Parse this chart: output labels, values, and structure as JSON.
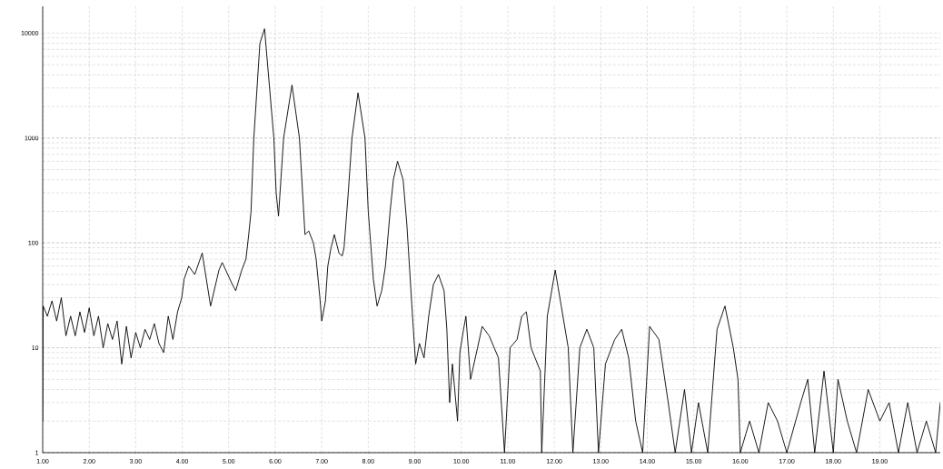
{
  "chart_data": {
    "type": "line",
    "log": "y",
    "grid": true,
    "xlim": [
      1,
      20.3
    ],
    "ylim": [
      1,
      18000
    ],
    "xticks": [
      {
        "value": 1,
        "label": "1.00"
      },
      {
        "value": 2,
        "label": "2.00"
      },
      {
        "value": 3,
        "label": "3.00"
      },
      {
        "value": 4,
        "label": "4.00"
      },
      {
        "value": 5,
        "label": "5.00"
      },
      {
        "value": 6,
        "label": "6.00"
      },
      {
        "value": 7,
        "label": "7.00"
      },
      {
        "value": 8,
        "label": "8.00"
      },
      {
        "value": 9,
        "label": "9.00"
      },
      {
        "value": 10,
        "label": "10.00"
      },
      {
        "value": 11,
        "label": "11.00"
      },
      {
        "value": 12,
        "label": "12.00"
      },
      {
        "value": 13,
        "label": "13.00"
      },
      {
        "value": 14,
        "label": "14.00"
      },
      {
        "value": 15,
        "label": "15.00"
      },
      {
        "value": 16,
        "label": "16.00"
      },
      {
        "value": 17,
        "label": "17.00"
      },
      {
        "value": 18,
        "label": "18.00"
      },
      {
        "value": 19,
        "label": "19.00"
      }
    ],
    "yticks": [
      1,
      10,
      100,
      1000,
      10000
    ],
    "series": [
      {
        "color": "#000000",
        "x": [
          1.0,
          1.01,
          1.1,
          1.2,
          1.3,
          1.4,
          1.5,
          1.6,
          1.7,
          1.8,
          1.9,
          2.0,
          2.1,
          2.2,
          2.3,
          2.4,
          2.5,
          2.6,
          2.7,
          2.8,
          2.9,
          3.0,
          3.1,
          3.2,
          3.3,
          3.4,
          3.5,
          3.6,
          3.7,
          3.8,
          3.9,
          3.99,
          4.04,
          4.14,
          4.27,
          4.43,
          4.61,
          4.79,
          4.86,
          5.08,
          5.15,
          5.28,
          5.37,
          5.43,
          5.48,
          5.54,
          5.67,
          5.77,
          5.97,
          6.02,
          6.07,
          6.18,
          6.36,
          6.52,
          6.64,
          6.72,
          6.82,
          6.88,
          6.96,
          7.0,
          7.08,
          7.13,
          7.2,
          7.27,
          7.37,
          7.44,
          7.48,
          7.57,
          7.65,
          7.78,
          7.93,
          8.0,
          8.11,
          8.19,
          8.29,
          8.37,
          8.47,
          8.54,
          8.63,
          8.75,
          8.83,
          8.91,
          8.97,
          9.02,
          9.1,
          9.2,
          9.3,
          9.4,
          9.51,
          9.63,
          9.69,
          9.75,
          9.81,
          9.92,
          9.97,
          10.05,
          10.1,
          10.2,
          10.35,
          10.45,
          10.6,
          10.8,
          10.93,
          11.05,
          11.2,
          11.3,
          11.4,
          11.5,
          11.7,
          11.73,
          11.85,
          12.02,
          12.15,
          12.3,
          12.4,
          12.55,
          12.7,
          12.85,
          12.95,
          13.1,
          13.3,
          13.45,
          13.6,
          13.75,
          13.9,
          14.05,
          14.25,
          14.45,
          14.6,
          14.8,
          14.95,
          15.1,
          15.3,
          15.5,
          15.67,
          15.85,
          15.95,
          16.0,
          16.2,
          16.4,
          16.6,
          16.8,
          17.0,
          17.3,
          17.45,
          17.6,
          17.8,
          18.0,
          18.1,
          18.3,
          18.5,
          18.75,
          19.0,
          19.2,
          19.4,
          19.6,
          19.8,
          20.0,
          20.2,
          20.3
        ],
        "values": [
          2,
          25,
          20,
          28,
          18,
          30,
          13,
          20,
          13,
          22,
          14,
          24,
          13,
          20,
          10,
          17,
          12,
          18,
          7,
          16,
          8,
          14,
          10,
          15,
          12,
          17,
          11,
          9,
          20,
          12,
          22,
          30,
          45,
          60,
          50,
          80,
          25,
          55,
          65,
          40,
          35,
          55,
          70,
          120,
          200,
          1000,
          8000,
          11000,
          1000,
          300,
          180,
          1000,
          3200,
          1000,
          120,
          130,
          100,
          70,
          30,
          18,
          28,
          60,
          90,
          120,
          80,
          75,
          90,
          300,
          1000,
          2700,
          1000,
          200,
          45,
          25,
          35,
          60,
          200,
          400,
          600,
          400,
          150,
          40,
          15,
          7,
          11,
          8,
          20,
          40,
          50,
          35,
          15,
          3,
          7,
          2,
          9,
          15,
          20,
          5,
          10,
          16,
          13,
          8,
          1,
          10,
          12,
          20,
          22,
          10,
          6,
          1,
          20,
          55,
          25,
          10,
          1,
          10,
          15,
          10,
          1,
          7,
          12,
          15,
          8,
          2,
          1,
          16,
          12,
          3,
          1,
          4,
          1,
          3,
          1,
          15,
          25,
          10,
          5,
          1,
          2,
          1,
          3,
          2,
          1,
          3,
          5,
          1,
          6,
          1,
          5,
          2,
          1,
          4,
          2,
          3,
          1,
          3,
          1,
          2,
          1,
          3
        ]
      }
    ]
  }
}
